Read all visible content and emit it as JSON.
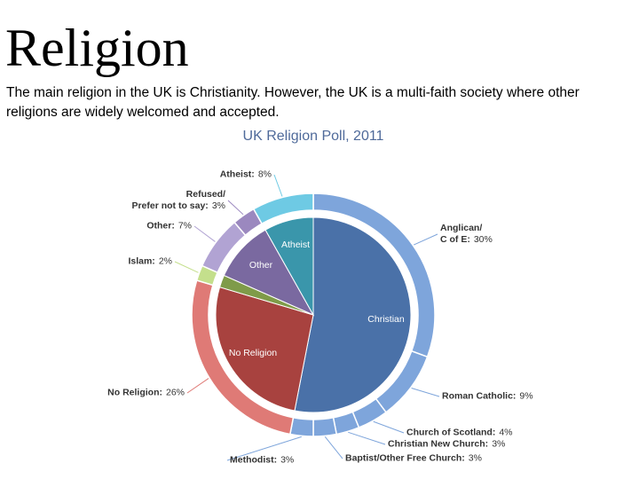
{
  "title": "Religion",
  "text": "The main religion in the UK is Christianity. However, the UK is a multi-faith society where other religions are widely welcomed and accepted.",
  "chart_data": {
    "type": "sunburst",
    "title": "UK Religion Poll, 2011",
    "inner": {
      "categories": [
        "Christian",
        "No Religion",
        null,
        "Other",
        "Atheist"
      ],
      "values": [
        52,
        26,
        2,
        10,
        8
      ],
      "colors": [
        "#4a71a8",
        "#a8423f",
        "#7f9b49",
        "#7a69a0",
        "#3a96ab"
      ]
    },
    "outer": {
      "categories": [
        "Anglican/\nC of E:",
        "Roman Catholic:",
        "Church of Scotland:",
        "Christian New Church:",
        "Baptist/Other Free Church:",
        "Methodist:",
        "No Religion:",
        "Islam:",
        "Other:",
        "Refused/\nPrefer not to say:",
        "Atheist:"
      ],
      "values": [
        30,
        9,
        4,
        3,
        3,
        3,
        26,
        2,
        7,
        3,
        8
      ],
      "value_labels": [
        "30%",
        "9%",
        "4%",
        "3%",
        "3%",
        "3%",
        "26%",
        "2%",
        "7%",
        "3%",
        "8%"
      ],
      "colors": [
        "#7ea5db",
        "#7ea5db",
        "#7ea5db",
        "#7ea5db",
        "#7ea5db",
        "#7ea5db",
        "#df7a76",
        "#c4df8c",
        "#b1a3d3",
        "#9b88bf",
        "#6ecae4"
      ]
    }
  }
}
